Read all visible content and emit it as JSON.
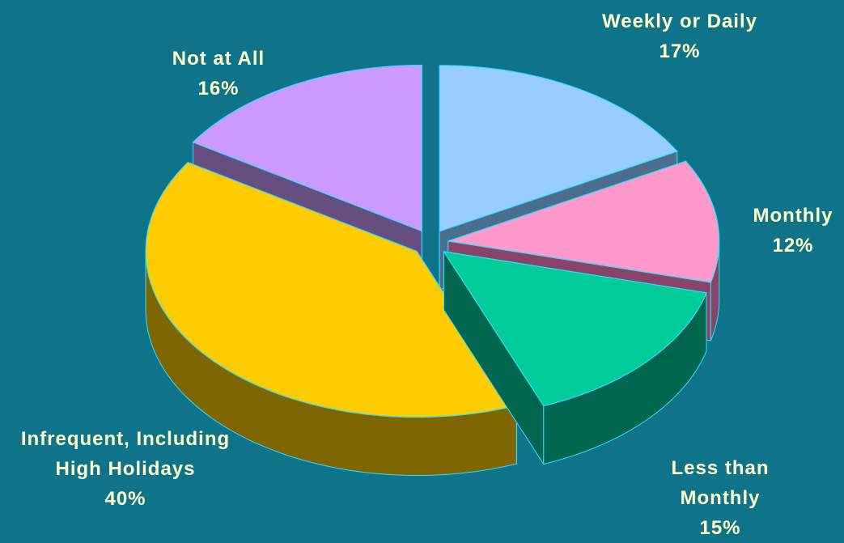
{
  "chart_data": {
    "type": "pie3d",
    "categories": [
      "Weekly or Daily",
      "Monthly",
      "Less than Monthly",
      "Infrequent, Including High Holidays",
      "Not at All"
    ],
    "values": [
      17,
      12,
      15,
      40,
      16
    ],
    "value_labels": [
      "17%",
      "12%",
      "15%",
      "40%",
      "16%"
    ],
    "colors": [
      "#99ccff",
      "#ff99cc",
      "#00cc99",
      "#ffcc00",
      "#cc99ff"
    ],
    "side_colors": [
      "#4a6e8c",
      "#884466",
      "#006650",
      "#806600",
      "#664e80"
    ]
  }
}
